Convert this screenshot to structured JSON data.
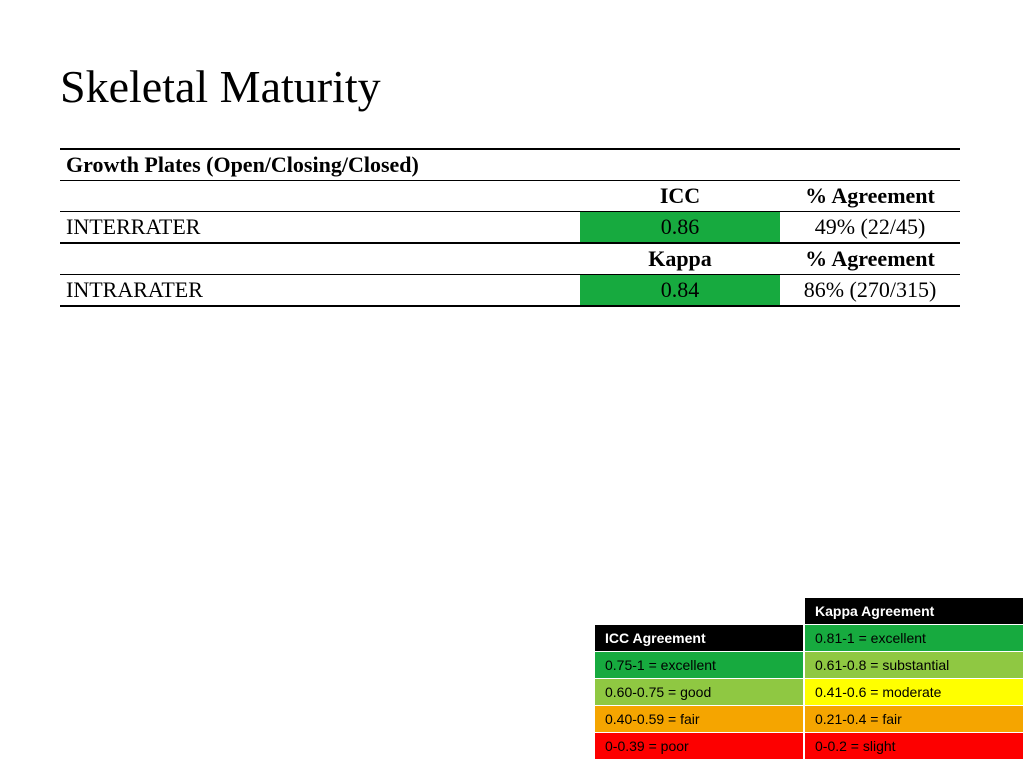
{
  "title": "Skeletal Maturity",
  "table": {
    "section_header": "Growth Plates (Open/Closing/Closed)",
    "header1": {
      "stat": "ICC",
      "agree": "% Agreement"
    },
    "row1": {
      "label": "INTERRATER",
      "stat": "0.86",
      "stat_bg": "#17aa3f",
      "agree": "49% (22/45)"
    },
    "header2": {
      "stat": "Kappa",
      "agree": "% Agreement"
    },
    "row2": {
      "label": "INTRARATER",
      "stat": "0.84",
      "stat_bg": "#17aa3f",
      "agree": "86% (270/315)"
    }
  },
  "icc_legend": {
    "title": "ICC Agreement",
    "rows": [
      {
        "text": "0.75-1 = excellent",
        "bg": "#17aa3f"
      },
      {
        "text": "0.60-0.75 = good",
        "bg": "#8fc842"
      },
      {
        "text": "0.40-0.59 = fair",
        "bg": "#f5a500"
      },
      {
        "text": "0-0.39 = poor",
        "bg": "#fd0000"
      }
    ]
  },
  "kappa_legend": {
    "title": "Kappa Agreement",
    "rows": [
      {
        "text": "0.81-1 = excellent",
        "bg": "#17aa3f"
      },
      {
        "text": "0.61-0.8 = substantial",
        "bg": "#8fc842"
      },
      {
        "text": "0.41-0.6 = moderate",
        "bg": "#ffff00"
      },
      {
        "text": "0.21-0.4 = fair",
        "bg": "#f5a500"
      },
      {
        "text": "0-0.2 = slight",
        "bg": "#fd0000"
      }
    ]
  }
}
